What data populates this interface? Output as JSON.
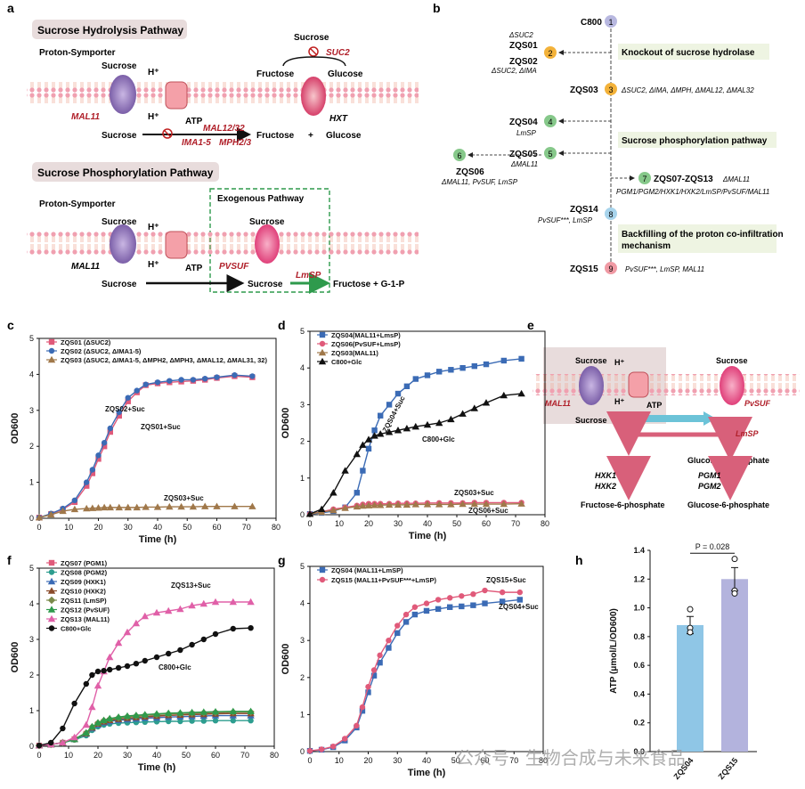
{
  "colors": {
    "red": "#b0202a",
    "green": "#2e9a4c",
    "blue": "#3b6bb5",
    "pink": "#e05a7a",
    "brown": "#a0784a",
    "purple": "#7b5fa8",
    "teal": "#2d9d8f",
    "barA": "#8fc6e6",
    "barB": "#b3b3dd",
    "box": "#e8dcdc"
  },
  "panel_labels": {
    "a": "a",
    "b": "b",
    "c": "c",
    "d": "d",
    "e": "e",
    "f": "f",
    "g": "g",
    "h": "h"
  },
  "panel_a": {
    "hyd_title": "Sucrose Hydrolysis Pathway",
    "phos_title": "Sucrose Phosphorylation Pathway",
    "proton_symporter": "Proton-Symporter",
    "sucrose": "Sucrose",
    "hplus": "H⁺",
    "atp": "ATP",
    "mal11": "MAL11",
    "hxt": "HXT",
    "suc2": "SUC2",
    "fructose": "Fructose",
    "glucose": "Glucose",
    "plus": "+",
    "mal12_32": "MAL12/32",
    "ima15": "IMA1-5",
    "mph23": "MPH2/3",
    "exogenous": "Exogenous Pathway",
    "pvsuf": "PVSUF",
    "lmsp": "LmSP",
    "fructose_g1p": "Fructose + G-1-P"
  },
  "panel_b": {
    "nodes": [
      {
        "num": "1",
        "name": "C800",
        "note": ""
      },
      {
        "num": "2",
        "name": "ZQS01",
        "pre": "ΔSUC2",
        "name2": "ZQS02",
        "note": "ΔSUC2, ΔIMA"
      },
      {
        "num": "3",
        "name": "ZQS03",
        "note": "ΔSUC2, ΔIMA, ΔMPH, ΔMAL12, ΔMAL32"
      },
      {
        "num": "4",
        "name": "ZQS04",
        "note": "LmSP"
      },
      {
        "num": "5",
        "name": "ZQS05",
        "note": "ΔMAL11"
      },
      {
        "num": "6",
        "name": "ZQS06",
        "note": "ΔMAL11, PvSUF, LmSP"
      },
      {
        "num": "7",
        "name": "ZQS07-ZQS13",
        "note": "ΔMAL11",
        "note2": "PGM1/PGM2/HXK1/HXK2/LmSP/PvSUF/MAL11"
      },
      {
        "num": "8",
        "name": "ZQS14",
        "note": "PvSUF***, LmSP"
      },
      {
        "num": "9",
        "name": "ZQS15",
        "note": "PvSUF***, LmSP, MAL11"
      }
    ],
    "box1": "Knockout of sucrose hydrolase",
    "box2": "Sucrose phosphorylation pathway",
    "box3a": "Backfilling of the proton co-infiltration",
    "box3b": "mechanism"
  },
  "panel_e": {
    "sucrose": "Sucrose",
    "hplus": "H⁺",
    "atp": "ATP",
    "mal11": "MAL11",
    "pvsuf": "PvSUF",
    "lmsp": "LmSP",
    "fructose": "Fructose",
    "g1p": "Glucose-1-phosphate",
    "hxk1": "HXK1",
    "hxk2": "HXK2",
    "pgm1": "PGM1",
    "pgm2": "PGM2",
    "f6p": "Fructose-6-phosphate",
    "g6p": "Glucose-6-phosphate"
  },
  "chart_data": [
    {
      "panel": "c",
      "type": "line",
      "xlabel": "Time (h)",
      "ylabel": "OD600",
      "xlim": [
        0,
        80
      ],
      "ylim": [
        0,
        5
      ],
      "xticks": [
        0,
        10,
        20,
        30,
        40,
        50,
        60,
        70,
        80
      ],
      "yticks": [
        0,
        1,
        2,
        3,
        4,
        5
      ],
      "x": [
        0,
        4,
        8,
        12,
        16,
        18,
        20,
        22,
        24,
        27,
        30,
        33,
        36,
        40,
        44,
        48,
        52,
        56,
        60,
        66,
        72
      ],
      "series": [
        {
          "name": "ZQS01 (ΔSUC2)",
          "color": "#e05a7a",
          "marker": "square",
          "values": [
            0.02,
            0.12,
            0.25,
            0.45,
            0.9,
            1.25,
            1.65,
            2.0,
            2.4,
            2.85,
            3.25,
            3.5,
            3.7,
            3.75,
            3.78,
            3.8,
            3.82,
            3.85,
            3.9,
            3.95,
            3.92
          ]
        },
        {
          "name": "ZQS02 (ΔSUC2, ΔIMA1-5)",
          "color": "#3b6bb5",
          "marker": "circle",
          "values": [
            0.02,
            0.13,
            0.27,
            0.5,
            1.0,
            1.35,
            1.75,
            2.1,
            2.5,
            2.95,
            3.35,
            3.55,
            3.72,
            3.78,
            3.82,
            3.85,
            3.85,
            3.88,
            3.92,
            3.98,
            3.95
          ]
        },
        {
          "name": "ZQS03 (ΔSUC2, ΔIMA1-5, ΔMPH2, ΔMPH3, ΔMAL12, ΔMAL31, 32)",
          "color": "#a0784a",
          "marker": "triangle",
          "values": [
            0.02,
            0.1,
            0.2,
            0.25,
            0.27,
            0.28,
            0.29,
            0.3,
            0.3,
            0.3,
            0.3,
            0.3,
            0.31,
            0.31,
            0.32,
            0.32,
            0.32,
            0.33,
            0.33,
            0.33,
            0.33
          ]
        }
      ],
      "annotations": [
        "ZQS02+Suc",
        "ZQS01+Suc",
        "ZQS03+Suc"
      ]
    },
    {
      "panel": "d",
      "type": "line",
      "xlabel": "Time (h)",
      "ylabel": "OD600",
      "xlim": [
        0,
        80
      ],
      "ylim": [
        0,
        5
      ],
      "xticks": [
        0,
        10,
        20,
        30,
        40,
        50,
        60,
        70,
        80
      ],
      "yticks": [
        0,
        1,
        2,
        3,
        4,
        5
      ],
      "x": [
        0,
        4,
        8,
        12,
        16,
        18,
        20,
        22,
        24,
        27,
        30,
        33,
        36,
        40,
        44,
        48,
        52,
        56,
        60,
        66,
        72
      ],
      "series": [
        {
          "name": "ZQS04(MAL11+LmsP)",
          "color": "#3b6bb5",
          "marker": "square",
          "values": [
            0.02,
            0.05,
            0.1,
            0.2,
            0.6,
            1.2,
            1.8,
            2.3,
            2.7,
            3.0,
            3.3,
            3.5,
            3.7,
            3.8,
            3.9,
            3.95,
            4.0,
            4.05,
            4.1,
            4.2,
            4.25
          ]
        },
        {
          "name": "ZQS06(PvSUF+LmsP)",
          "color": "#e05a7a",
          "marker": "circle",
          "values": [
            0.02,
            0.08,
            0.15,
            0.2,
            0.25,
            0.28,
            0.3,
            0.3,
            0.3,
            0.3,
            0.31,
            0.31,
            0.31,
            0.32,
            0.32,
            0.32,
            0.32,
            0.33,
            0.33,
            0.33,
            0.33
          ]
        },
        {
          "name": "ZQS03(MAL11)",
          "color": "#a0784a",
          "marker": "triangle",
          "values": [
            0.02,
            0.07,
            0.12,
            0.18,
            0.22,
            0.24,
            0.25,
            0.26,
            0.26,
            0.27,
            0.27,
            0.27,
            0.28,
            0.28,
            0.28,
            0.28,
            0.29,
            0.29,
            0.29,
            0.29,
            0.3
          ]
        },
        {
          "name": "C800+Glc",
          "color": "#111111",
          "marker": "triangle",
          "values": [
            0.02,
            0.15,
            0.6,
            1.2,
            1.65,
            1.9,
            2.05,
            2.15,
            2.2,
            2.25,
            2.3,
            2.35,
            2.4,
            2.45,
            2.5,
            2.6,
            2.75,
            2.9,
            3.05,
            3.25,
            3.3
          ]
        }
      ],
      "annotations": [
        "ZQS04+Suc",
        "C800+Glc",
        "ZQS03+Suc",
        "ZQS06+Suc"
      ]
    },
    {
      "panel": "f",
      "type": "line",
      "xlabel": "Time (h)",
      "ylabel": "OD600",
      "xlim": [
        0,
        80
      ],
      "ylim": [
        0,
        5
      ],
      "xticks": [
        0,
        10,
        20,
        30,
        40,
        50,
        60,
        70,
        80
      ],
      "yticks": [
        0,
        1,
        2,
        3,
        4,
        5
      ],
      "x": [
        0,
        4,
        8,
        12,
        16,
        18,
        20,
        22,
        24,
        27,
        30,
        33,
        36,
        40,
        44,
        48,
        52,
        56,
        60,
        66,
        72
      ],
      "series": [
        {
          "name": "ZQS07 (PGM1)",
          "color": "#e05a7a",
          "marker": "square",
          "values": [
            0.02,
            0.05,
            0.1,
            0.2,
            0.35,
            0.5,
            0.62,
            0.68,
            0.72,
            0.75,
            0.78,
            0.8,
            0.82,
            0.84,
            0.86,
            0.88,
            0.9,
            0.9,
            0.92,
            0.92,
            0.92
          ]
        },
        {
          "name": "ZQS08 (PGM2)",
          "color": "#2d9d8f",
          "marker": "circle",
          "values": [
            0.02,
            0.05,
            0.1,
            0.18,
            0.3,
            0.45,
            0.55,
            0.6,
            0.63,
            0.65,
            0.66,
            0.67,
            0.68,
            0.69,
            0.7,
            0.7,
            0.71,
            0.71,
            0.72,
            0.72,
            0.72
          ]
        },
        {
          "name": "ZQS09 (HXK1)",
          "color": "#3b6bb5",
          "marker": "triangle",
          "values": [
            0.02,
            0.05,
            0.1,
            0.2,
            0.35,
            0.5,
            0.6,
            0.66,
            0.7,
            0.73,
            0.75,
            0.77,
            0.79,
            0.8,
            0.82,
            0.83,
            0.84,
            0.85,
            0.86,
            0.86,
            0.86
          ]
        },
        {
          "name": "ZQS10 (HXK2)",
          "color": "#8a4b2a",
          "marker": "triangle",
          "values": [
            0.02,
            0.05,
            0.1,
            0.2,
            0.36,
            0.52,
            0.63,
            0.69,
            0.73,
            0.76,
            0.79,
            0.81,
            0.83,
            0.85,
            0.87,
            0.88,
            0.89,
            0.9,
            0.91,
            0.92,
            0.92
          ]
        },
        {
          "name": "ZQS11 (LmSP)",
          "color": "#7a8a4a",
          "marker": "diamond",
          "values": [
            0.02,
            0.05,
            0.1,
            0.2,
            0.37,
            0.54,
            0.65,
            0.72,
            0.76,
            0.8,
            0.83,
            0.85,
            0.87,
            0.89,
            0.91,
            0.92,
            0.93,
            0.94,
            0.95,
            0.96,
            0.96
          ]
        },
        {
          "name": "ZQS12 (PvSUF)",
          "color": "#2e9a4c",
          "marker": "triangle",
          "values": [
            0.02,
            0.05,
            0.1,
            0.2,
            0.38,
            0.55,
            0.66,
            0.73,
            0.78,
            0.82,
            0.85,
            0.87,
            0.89,
            0.91,
            0.93,
            0.94,
            0.95,
            0.96,
            0.97,
            0.98,
            0.98
          ]
        },
        {
          "name": "ZQS13 (MAL11)",
          "color": "#e060a8",
          "marker": "triangle",
          "values": [
            0.02,
            0.05,
            0.1,
            0.25,
            0.6,
            1.1,
            1.7,
            2.1,
            2.5,
            2.9,
            3.2,
            3.45,
            3.65,
            3.75,
            3.8,
            3.85,
            3.95,
            4.0,
            4.05,
            4.05,
            4.05
          ]
        },
        {
          "name": "C800+Glc",
          "color": "#111111",
          "marker": "circle",
          "values": [
            0.02,
            0.1,
            0.5,
            1.2,
            1.75,
            2.0,
            2.1,
            2.12,
            2.15,
            2.2,
            2.25,
            2.32,
            2.4,
            2.5,
            2.6,
            2.7,
            2.85,
            3.0,
            3.15,
            3.3,
            3.32
          ]
        }
      ],
      "annotations": [
        "ZQS13+Suc",
        "C800+Glc"
      ]
    },
    {
      "panel": "g",
      "type": "line",
      "xlabel": "Time (h)",
      "ylabel": "OD600",
      "xlim": [
        0,
        80
      ],
      "ylim": [
        0,
        5
      ],
      "xticks": [
        0,
        10,
        20,
        30,
        40,
        50,
        60,
        70,
        80
      ],
      "yticks": [
        0,
        1,
        2,
        3,
        4,
        5
      ],
      "x": [
        0,
        4,
        8,
        12,
        16,
        18,
        20,
        22,
        24,
        27,
        30,
        33,
        36,
        40,
        44,
        48,
        52,
        56,
        60,
        66,
        72
      ],
      "series": [
        {
          "name": "ZQS04 (MAL11+LmSP)",
          "color": "#3b6bb5",
          "marker": "square",
          "values": [
            0.02,
            0.05,
            0.12,
            0.3,
            0.65,
            1.1,
            1.6,
            2.05,
            2.4,
            2.8,
            3.2,
            3.5,
            3.7,
            3.8,
            3.85,
            3.9,
            3.92,
            3.95,
            4.0,
            4.05,
            4.1
          ]
        },
        {
          "name": "ZQS15 (MAL11+PvSUF***+LmSP)",
          "color": "#e05a7a",
          "marker": "circle",
          "values": [
            0.02,
            0.06,
            0.14,
            0.35,
            0.7,
            1.2,
            1.75,
            2.2,
            2.6,
            3.0,
            3.4,
            3.7,
            3.9,
            4.0,
            4.1,
            4.15,
            4.2,
            4.25,
            4.35,
            4.3,
            4.3
          ]
        }
      ],
      "annotations": [
        "ZQS15+Suc",
        "ZQS04+Suc"
      ]
    },
    {
      "panel": "h",
      "type": "bar",
      "xlabel": "",
      "ylabel": "ATP (μmol/L/OD600)",
      "ylim": [
        0,
        1.4
      ],
      "yticks": [
        "0.0",
        "0.2",
        "0.4",
        "0.6",
        "0.8",
        "1.0",
        "1.2",
        "1.4"
      ],
      "categories": [
        "ZQS04",
        "ZQS15"
      ],
      "values": [
        0.88,
        1.2
      ],
      "errors": [
        0.06,
        0.08
      ],
      "points": [
        [
          0.99,
          0.86,
          0.83
        ],
        [
          1.34,
          1.12,
          1.1
        ]
      ],
      "pvalue": "P = 0.028"
    }
  ],
  "watermark": "公众号 · 生物合成与未来食品"
}
